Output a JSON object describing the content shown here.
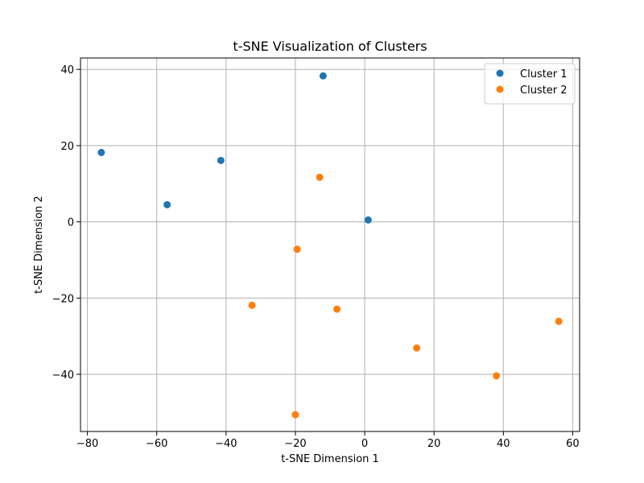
{
  "chart_data": {
    "type": "scatter",
    "title": "t-SNE Visualization of Clusters",
    "xlabel": "t-SNE Dimension 1",
    "ylabel": "t-SNE Dimension 2",
    "xlim": [
      -82,
      62
    ],
    "ylim": [
      -55,
      43
    ],
    "xticks": [
      -80,
      -60,
      -40,
      -20,
      0,
      20,
      40,
      60
    ],
    "yticks": [
      -40,
      -20,
      0,
      20,
      40
    ],
    "xtick_labels": [
      "−80",
      "−60",
      "−40",
      "−20",
      "0",
      "20",
      "40",
      "60"
    ],
    "ytick_labels": [
      "−40",
      "−20",
      "0",
      "20",
      "40"
    ],
    "grid": true,
    "legend_position": "top-right",
    "series": [
      {
        "name": "Cluster 1",
        "color": "#1f77b4",
        "points": [
          {
            "x": -12,
            "y": 38.3
          },
          {
            "x": -76,
            "y": 18.2
          },
          {
            "x": -41.5,
            "y": 16.1
          },
          {
            "x": -57,
            "y": 4.5
          },
          {
            "x": 1,
            "y": 0.5
          }
        ]
      },
      {
        "name": "Cluster 2",
        "color": "#ff7f0e",
        "points": [
          {
            "x": -13,
            "y": 11.7
          },
          {
            "x": -19.5,
            "y": -7.2
          },
          {
            "x": -32.5,
            "y": -21.9
          },
          {
            "x": -8,
            "y": -22.9
          },
          {
            "x": 15,
            "y": -33.1
          },
          {
            "x": 56,
            "y": -26.1
          },
          {
            "x": 38,
            "y": -40.4
          },
          {
            "x": -20,
            "y": -50.6
          }
        ]
      }
    ]
  }
}
